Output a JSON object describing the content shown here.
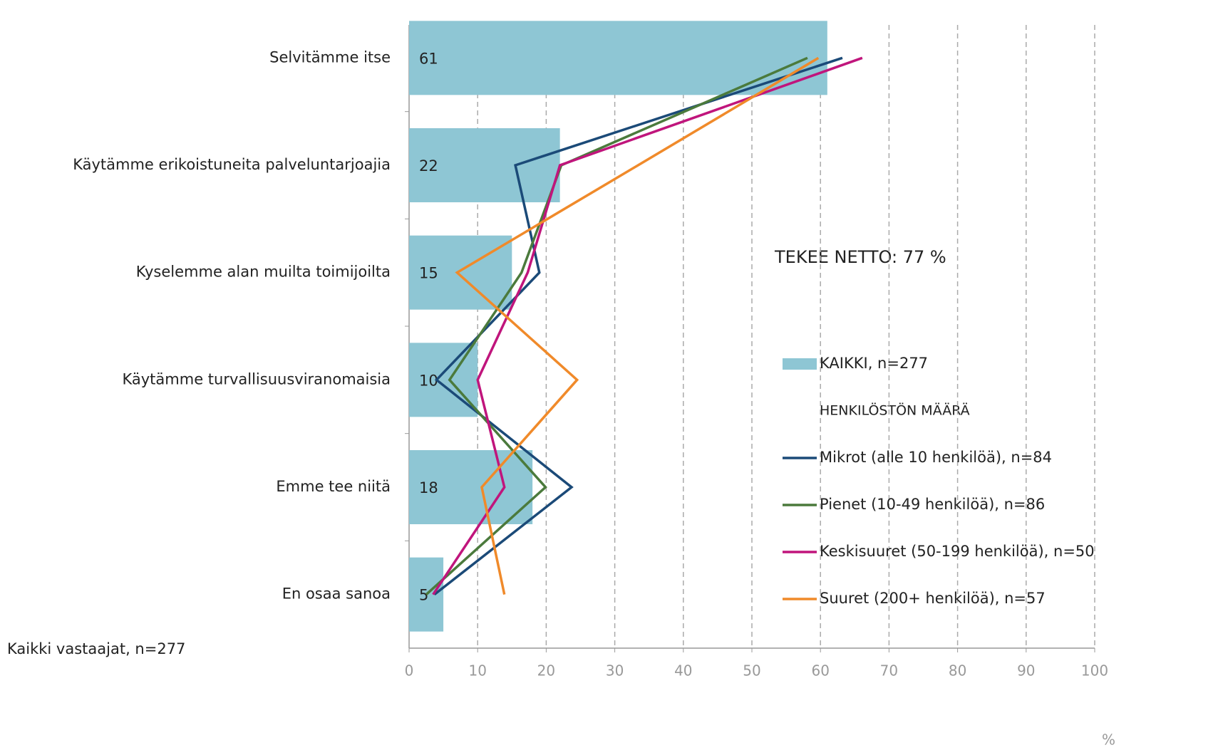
{
  "chart_data": {
    "type": "bar_line",
    "categories": [
      "Selvitämme itse",
      "Käytämme erikoistuneita palveluntarjoajia",
      "Kyselemme alan muilta toimijoilta",
      "Käytämme turvallisuusviranomaisia",
      "Emme tee niitä",
      "En osaa sanoa"
    ],
    "series": [
      {
        "name": "KAIKKI, n=277",
        "type": "bar",
        "color": "#8ec6d4",
        "values": [
          61,
          22,
          15,
          10,
          18,
          5
        ]
      },
      {
        "name": "Mikrot (alle 10 henkilöä), n=84",
        "type": "line",
        "color": "#1b4a78",
        "values": [
          63.2,
          15.5,
          19.0,
          4.0,
          23.7,
          3.7
        ]
      },
      {
        "name": "Pienet (10-49 henkilöä), n=86",
        "type": "line",
        "color": "#4b7a3c",
        "values": [
          58.1,
          22.2,
          16.4,
          5.9,
          19.9,
          2.5
        ]
      },
      {
        "name": "Keskisuuret (50-199 henkilöä), n=50",
        "type": "line",
        "color": "#c0157c",
        "values": [
          66.1,
          22.0,
          17.3,
          10.0,
          13.9,
          3.5
        ]
      },
      {
        "name": "Suuret (200+ henkilöä), n=57",
        "type": "line",
        "color": "#f08a2a",
        "values": [
          59.7,
          33.4,
          7.0,
          24.5,
          10.6,
          13.9
        ]
      }
    ],
    "legend_heading": "HENKILÖSTÖN MÄÄRÄ",
    "annotation": "TEKEE NETTO: 77 %",
    "footnote": "Kaikki vastaajat, n=277",
    "xlabel": "%",
    "xlim": [
      0,
      100
    ],
    "xticks": [
      0,
      10,
      20,
      30,
      40,
      50,
      60,
      70,
      80,
      90,
      100
    ],
    "grid": true
  }
}
